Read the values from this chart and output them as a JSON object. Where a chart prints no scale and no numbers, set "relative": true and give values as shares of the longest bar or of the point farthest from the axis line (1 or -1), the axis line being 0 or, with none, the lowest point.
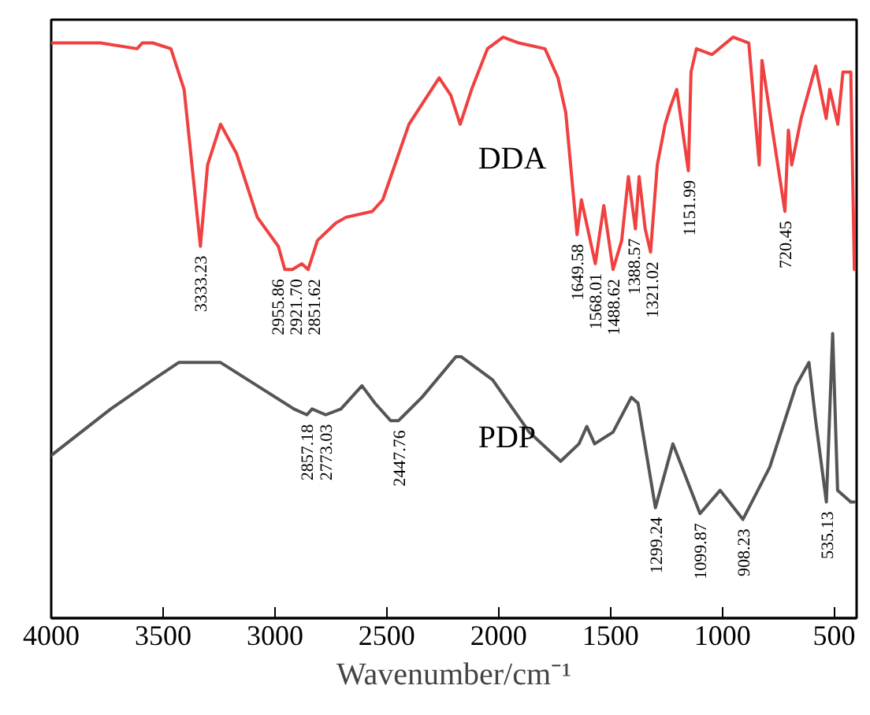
{
  "chart_data": {
    "type": "line",
    "relative": true,
    "xlabel": "Wavenumber/cm⁻¹",
    "xlim": [
      4000,
      400
    ],
    "xticks": [
      4000,
      3500,
      3000,
      2500,
      2000,
      1500,
      1000,
      500
    ],
    "grid": false,
    "series": [
      {
        "name": "DDA",
        "color": "#f04040",
        "x": [
          4000,
          3780,
          3616,
          3593,
          3546,
          3465,
          3406,
          3333.23,
          3301,
          3243,
          3172,
          3079,
          2985,
          2955.86,
          2921.7,
          2880,
          2851.62,
          2810,
          2728,
          2682,
          2565,
          2518,
          2401,
          2266,
          2214,
          2172,
          2121,
          2050,
          1980,
          1910,
          1793,
          1735,
          1700,
          1649.58,
          1630,
          1568.01,
          1530,
          1488.62,
          1450,
          1420,
          1388.57,
          1372,
          1345,
          1321.02,
          1291,
          1256,
          1232,
          1204,
          1151.99,
          1140,
          1116,
          1046,
          952,
          882,
          835,
          823,
          788,
          720.45,
          705,
          690,
          648,
          583,
          536,
          520,
          484,
          461,
          426,
          410
        ],
        "values": [
          0.99,
          0.99,
          0.98,
          0.99,
          0.99,
          0.98,
          0.91,
          0.64,
          0.78,
          0.85,
          0.8,
          0.69,
          0.64,
          0.6,
          0.6,
          0.61,
          0.6,
          0.65,
          0.68,
          0.69,
          0.7,
          0.72,
          0.85,
          0.93,
          0.9,
          0.85,
          0.91,
          0.98,
          1.0,
          0.99,
          0.98,
          0.93,
          0.87,
          0.66,
          0.72,
          0.61,
          0.71,
          0.6,
          0.65,
          0.76,
          0.67,
          0.76,
          0.67,
          0.63,
          0.78,
          0.85,
          0.88,
          0.91,
          0.77,
          0.94,
          0.98,
          0.97,
          1.0,
          0.99,
          0.78,
          0.96,
          0.87,
          0.7,
          0.84,
          0.78,
          0.86,
          0.95,
          0.86,
          0.91,
          0.85,
          0.94,
          0.94,
          0.6
        ]
      },
      {
        "name": "PDP",
        "color": "#555555",
        "x": [
          4000,
          3734,
          3546,
          3430,
          3243,
          3079,
          2915,
          2857.18,
          2834,
          2773.03,
          2705,
          2611,
          2553,
          2483,
          2447.76,
          2343,
          2191,
          2168,
          2027,
          1863,
          1723,
          1641,
          1606,
          1571,
          1489,
          1407,
          1377,
          1299.24,
          1221,
          1099.87,
          1010,
          908.23,
          788,
          671,
          613,
          583,
          535.13,
          507,
          485,
          426,
          410
        ],
        "values": [
          0.28,
          0.36,
          0.41,
          0.44,
          0.44,
          0.4,
          0.36,
          0.35,
          0.36,
          0.35,
          0.36,
          0.4,
          0.37,
          0.34,
          0.34,
          0.38,
          0.45,
          0.45,
          0.41,
          0.32,
          0.27,
          0.3,
          0.33,
          0.3,
          0.32,
          0.38,
          0.37,
          0.19,
          0.3,
          0.18,
          0.22,
          0.17,
          0.26,
          0.4,
          0.44,
          0.34,
          0.2,
          0.49,
          0.22,
          0.2,
          0.2
        ]
      }
    ],
    "annotations": [
      {
        "text": "3333.23",
        "x": 3333.23,
        "y": 0.64
      },
      {
        "text": "2955.86",
        "x": 2955.86,
        "y": 0.6
      },
      {
        "text": "2921.70",
        "x": 2921.7,
        "y": 0.6
      },
      {
        "text": "2851.62",
        "x": 2851.62,
        "y": 0.6
      },
      {
        "text": "1649.58",
        "x": 1649.58,
        "y": 0.66
      },
      {
        "text": "1568.01",
        "x": 1568.01,
        "y": 0.61
      },
      {
        "text": "1488.62",
        "x": 1488.62,
        "y": 0.6
      },
      {
        "text": "1388.57",
        "x": 1388.57,
        "y": 0.67
      },
      {
        "text": "1321.02",
        "x": 1321.02,
        "y": 0.63
      },
      {
        "text": "1151.99",
        "x": 1151.99,
        "y": 0.77
      },
      {
        "text": "720.45",
        "x": 720.45,
        "y": 0.7
      },
      {
        "text": "2857.18",
        "x": 2857.18,
        "y": 0.35
      },
      {
        "text": "2773.03",
        "x": 2773.03,
        "y": 0.35
      },
      {
        "text": "2447.76",
        "x": 2447.76,
        "y": 0.34
      },
      {
        "text": "1299.24",
        "x": 1299.24,
        "y": 0.19
      },
      {
        "text": "1099.87",
        "x": 1099.87,
        "y": 0.18
      },
      {
        "text": "908.23",
        "x": 908.23,
        "y": 0.17
      },
      {
        "text": "535.13",
        "x": 535.13,
        "y": 0.2
      }
    ]
  }
}
